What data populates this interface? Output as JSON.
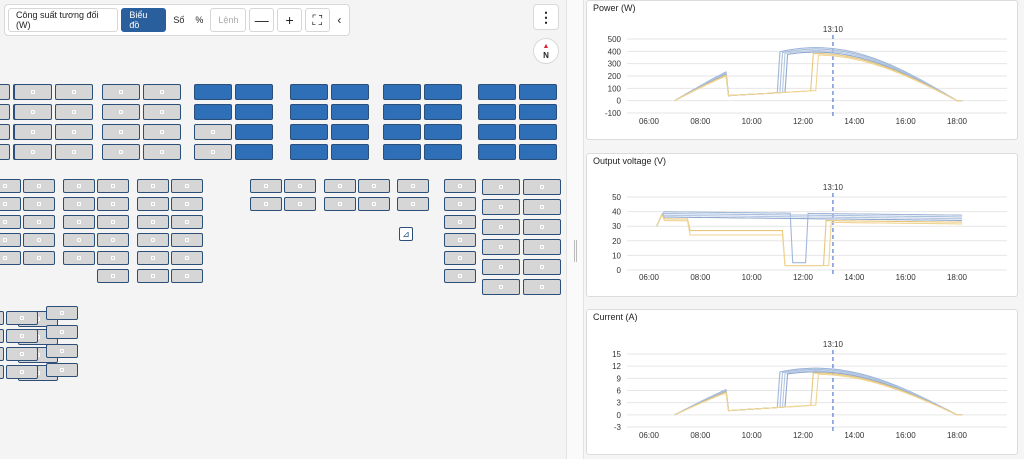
{
  "toolbar": {
    "relative_power": "Công suất tương đối (W)",
    "chart": "Biểu đồ",
    "number": "Số",
    "percent": "%",
    "command": "Lệnh",
    "zoom_out": "—",
    "zoom_in": "+",
    "fullscreen": "⛶",
    "collapse": "‹"
  },
  "menu_icon": "⋮",
  "compass_label": "N",
  "accent_color": "#2f6fb8",
  "charts": [
    {
      "title": "Power (W)",
      "marker": "13:10",
      "chart_data": {
        "type": "line",
        "x": [
          "06:00",
          "08:00",
          "10:00",
          "12:00",
          "14:00",
          "16:00",
          "18:00"
        ],
        "ylim": [
          -100,
          500
        ],
        "yticks": [
          -100,
          0,
          100,
          200,
          300,
          400,
          500
        ],
        "series": [
          {
            "color": "#9fb7d9",
            "values": [
              0,
              10,
              40,
              400,
              420,
              150,
              0
            ]
          },
          {
            "color": "#e8c77a",
            "values": [
              0,
              10,
              40,
              120,
              400,
              150,
              0
            ]
          }
        ]
      }
    },
    {
      "title": "Output voltage (V)",
      "marker": "13:10",
      "chart_data": {
        "type": "line",
        "x": [
          "06:00",
          "08:00",
          "10:00",
          "12:00",
          "14:00",
          "16:00",
          "18:00"
        ],
        "ylim": [
          0,
          50
        ],
        "yticks": [
          0,
          10,
          20,
          30,
          40,
          50
        ],
        "series": [
          {
            "color": "#9fb7d9",
            "values": [
              40,
              41,
              41,
              40,
              38,
              38,
              37
            ]
          },
          {
            "color": "#e8c77a",
            "values": [
              38,
              27,
              26,
              2,
              36,
              36,
              34
            ]
          }
        ]
      }
    },
    {
      "title": "Current (A)",
      "marker": "13:10",
      "chart_data": {
        "type": "line",
        "x": [
          "06:00",
          "08:00",
          "10:00",
          "12:00",
          "14:00",
          "16:00",
          "18:00"
        ],
        "ylim": [
          -3,
          15
        ],
        "yticks": [
          -3,
          0,
          3,
          6,
          9,
          12,
          15
        ],
        "series": [
          {
            "color": "#9fb7d9",
            "values": [
              0,
              0.3,
              1,
              10,
              10.5,
              4,
              0
            ]
          },
          {
            "color": "#e8c77a",
            "values": [
              0,
              0.3,
              1,
              3,
              10,
              4,
              0
            ]
          }
        ]
      }
    }
  ]
}
